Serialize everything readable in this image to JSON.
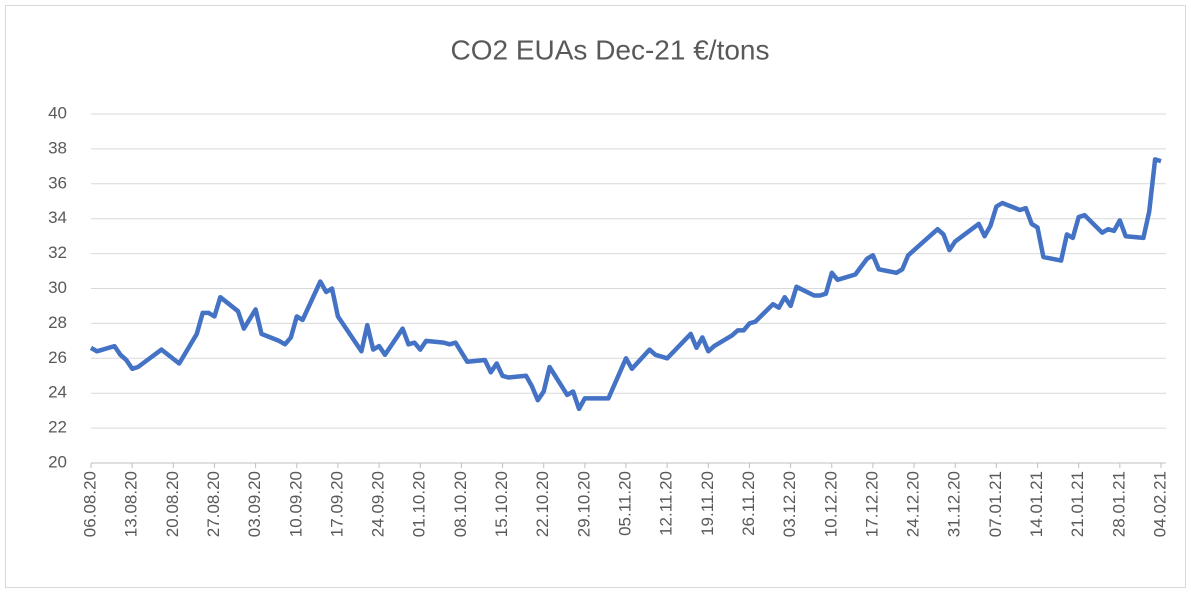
{
  "chart_data": {
    "type": "line",
    "title": "CO2 EUAs Dec-21 €/tons",
    "x": [
      "06.08.20",
      "07.08.20",
      "10.08.20",
      "11.08.20",
      "12.08.20",
      "13.08.20",
      "14.08.20",
      "18.08.20",
      "21.08.20",
      "24.08.20",
      "25.08.20",
      "26.08.20",
      "27.08.20",
      "28.08.20",
      "31.08.20",
      "01.09.20",
      "03.09.20",
      "04.09.20",
      "07.09.20",
      "08.09.20",
      "09.09.20",
      "10.09.20",
      "11.09.20",
      "14.09.20",
      "15.09.20",
      "16.09.20",
      "17.09.20",
      "21.09.20",
      "22.09.20",
      "23.09.20",
      "24.09.20",
      "25.09.20",
      "28.09.20",
      "29.09.20",
      "30.09.20",
      "01.10.20",
      "02.10.20",
      "05.10.20",
      "06.10.20",
      "07.10.20",
      "09.10.20",
      "12.10.20",
      "13.10.20",
      "14.10.20",
      "15.10.20",
      "16.10.20",
      "19.10.20",
      "20.10.20",
      "21.10.20",
      "22.10.20",
      "23.10.20",
      "26.10.20",
      "27.10.20",
      "28.10.20",
      "29.10.20",
      "02.11.20",
      "05.11.20",
      "06.11.20",
      "09.11.20",
      "10.11.20",
      "12.11.20",
      "16.11.20",
      "17.11.20",
      "18.11.20",
      "19.11.20",
      "20.11.20",
      "23.11.20",
      "24.11.20",
      "25.11.20",
      "26.11.20",
      "27.11.20",
      "30.11.20",
      "01.12.20",
      "02.12.20",
      "03.12.20",
      "04.12.20",
      "07.12.20",
      "08.12.20",
      "09.12.20",
      "10.12.20",
      "11.12.20",
      "14.12.20",
      "16.12.20",
      "17.12.20",
      "18.12.20",
      "21.12.20",
      "22.12.20",
      "23.12.20",
      "28.12.20",
      "29.12.20",
      "30.12.20",
      "31.12.20",
      "04.01.21",
      "05.01.21",
      "06.01.21",
      "07.01.21",
      "08.01.21",
      "11.01.21",
      "12.01.21",
      "13.01.21",
      "14.01.21",
      "15.01.21",
      "18.01.21",
      "19.01.21",
      "20.01.21",
      "21.01.21",
      "22.01.21",
      "25.01.21",
      "26.01.21",
      "27.01.21",
      "28.01.21",
      "29.01.21",
      "01.02.21",
      "02.02.21",
      "03.02.21",
      "04.02.21"
    ],
    "series": [
      {
        "name": "CO2 EUAs Dec-21",
        "color": "#4472c4",
        "values": [
          26.6,
          26.4,
          26.7,
          26.2,
          25.9,
          25.4,
          25.5,
          26.5,
          25.7,
          27.4,
          28.6,
          28.6,
          28.4,
          29.5,
          28.7,
          27.7,
          28.8,
          27.4,
          27.0,
          26.8,
          27.2,
          28.4,
          28.2,
          30.4,
          29.8,
          30.0,
          28.4,
          26.4,
          27.9,
          26.5,
          26.7,
          26.2,
          27.7,
          26.8,
          26.9,
          26.5,
          27.0,
          26.9,
          26.8,
          26.9,
          25.8,
          25.9,
          25.2,
          25.7,
          25.0,
          24.9,
          25.0,
          24.4,
          23.6,
          24.1,
          25.5,
          23.9,
          24.1,
          23.1,
          23.7,
          23.7,
          26.0,
          25.4,
          26.5,
          26.2,
          26.0,
          27.4,
          26.6,
          27.2,
          26.4,
          26.7,
          27.3,
          27.6,
          27.6,
          28.0,
          28.1,
          29.1,
          28.9,
          29.5,
          29.0,
          30.1,
          29.6,
          29.6,
          29.7,
          30.9,
          30.5,
          30.8,
          31.7,
          31.9,
          31.1,
          30.9,
          31.1,
          31.9,
          33.4,
          33.1,
          32.2,
          32.7,
          33.7,
          33.0,
          33.6,
          34.7,
          34.9,
          34.5,
          34.6,
          33.7,
          33.5,
          31.8,
          31.6,
          33.1,
          32.9,
          34.1,
          34.2,
          33.2,
          33.4,
          33.3,
          33.9,
          33.0,
          32.9,
          34.4,
          37.4,
          37.3
        ]
      }
    ],
    "xlim": [
      "06.08.20",
      "04.02.21"
    ],
    "xticks": [
      "06.08.20",
      "13.08.20",
      "20.08.20",
      "27.08.20",
      "03.09.20",
      "10.09.20",
      "17.09.20",
      "24.09.20",
      "01.10.20",
      "08.10.20",
      "15.10.20",
      "22.10.20",
      "29.10.20",
      "05.11.20",
      "12.11.20",
      "19.11.20",
      "26.11.20",
      "03.12.20",
      "10.12.20",
      "17.12.20",
      "24.12.20",
      "31.12.20",
      "07.01.21",
      "14.01.21",
      "21.01.21",
      "28.01.21",
      "04.02.21"
    ],
    "ylim": [
      20,
      40
    ],
    "yticks": [
      20,
      22,
      24,
      26,
      28,
      30,
      32,
      34,
      36,
      38,
      40
    ],
    "grid": true
  }
}
